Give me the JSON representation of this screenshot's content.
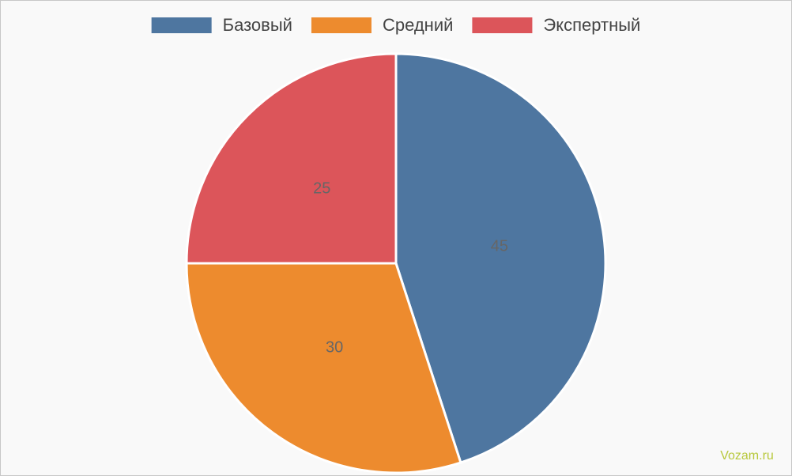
{
  "chart_data": {
    "type": "pie",
    "categories": [
      "Базовый",
      "Средний",
      "Экспертный"
    ],
    "values": [
      45,
      30,
      25
    ],
    "colors": [
      "#4e76a0",
      "#ed8b2e",
      "#dc555a"
    ],
    "legend": "top",
    "watermark": "Vozam.ru"
  }
}
